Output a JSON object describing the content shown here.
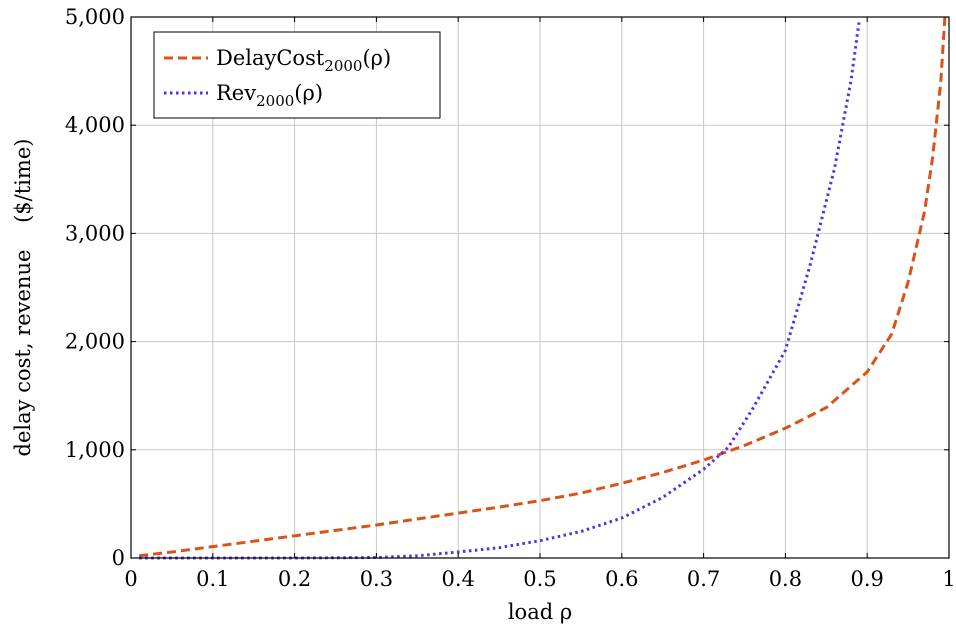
{
  "chart_data": {
    "type": "line",
    "xlabel": "load ρ",
    "ylabel": "delay cost, revenue    ($/time)",
    "xlim": [
      0,
      1
    ],
    "ylim": [
      0,
      5000
    ],
    "xticks": [
      0,
      0.1,
      0.2,
      0.3,
      0.4,
      0.5,
      0.6,
      0.7,
      0.8,
      0.9,
      1
    ],
    "xtick_labels": [
      "0",
      "0.1",
      "0.2",
      "0.3",
      "0.4",
      "0.5",
      "0.6",
      "0.7",
      "0.8",
      "0.9",
      "1"
    ],
    "yticks": [
      0,
      1000,
      2000,
      3000,
      4000,
      5000
    ],
    "ytick_labels": [
      "0",
      "1,000",
      "2,000",
      "3,000",
      "4,000",
      "5,000"
    ],
    "grid": true,
    "legend_position": "top-left",
    "series": [
      {
        "name": "DelayCost2000(ρ)",
        "legend_main": "DelayCost",
        "legend_sub": "2000",
        "legend_tail": "(ρ)",
        "color": "#d95319",
        "dash": "dashed",
        "x": [
          0.01,
          0.05,
          0.1,
          0.15,
          0.2,
          0.25,
          0.3,
          0.35,
          0.4,
          0.45,
          0.5,
          0.55,
          0.6,
          0.65,
          0.7,
          0.75,
          0.8,
          0.85,
          0.9,
          0.93,
          0.95,
          0.97,
          0.98,
          0.99,
          0.995
        ],
        "y": [
          20,
          55,
          105,
          155,
          205,
          255,
          305,
          360,
          415,
          470,
          530,
          600,
          690,
          790,
          905,
          1040,
          1200,
          1390,
          1720,
          2070,
          2550,
          3200,
          3700,
          4400,
          5000
        ]
      },
      {
        "name": "Rev2000(ρ)",
        "legend_main": "Rev",
        "legend_sub": "2000",
        "legend_tail": "(ρ)",
        "color": "#5a2ee6",
        "dash": "dotted",
        "x": [
          0.01,
          0.1,
          0.2,
          0.3,
          0.35,
          0.4,
          0.45,
          0.5,
          0.55,
          0.6,
          0.65,
          0.7,
          0.73,
          0.76,
          0.8,
          0.83,
          0.86,
          0.88,
          0.89
        ],
        "y": [
          0,
          0,
          0,
          5,
          20,
          55,
          95,
          160,
          245,
          370,
          560,
          820,
          1020,
          1380,
          1920,
          2700,
          3600,
          4400,
          4950
        ]
      }
    ]
  }
}
